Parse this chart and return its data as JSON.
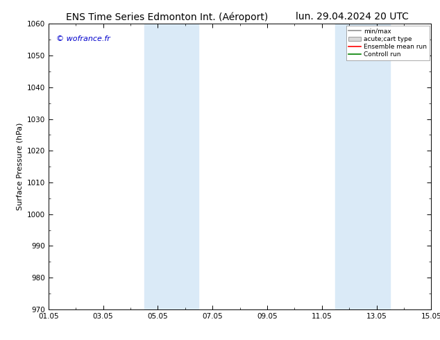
{
  "title_left": "ENS Time Series Edmonton Int. (Aéroport)",
  "title_right": "lun. 29.04.2024 20 UTC",
  "ylabel": "Surface Pressure (hPa)",
  "ylim": [
    970,
    1060
  ],
  "yticks": [
    970,
    980,
    990,
    1000,
    1010,
    1020,
    1030,
    1040,
    1050,
    1060
  ],
  "xtick_labels": [
    "01.05",
    "03.05",
    "05.05",
    "07.05",
    "09.05",
    "11.05",
    "13.05",
    "15.05"
  ],
  "xtick_positions_days": [
    0,
    2,
    4,
    6,
    8,
    10,
    12,
    14
  ],
  "xlim": [
    0,
    14
  ],
  "shaded_bands": [
    {
      "x_start_days": 3.5,
      "x_end_days": 5.5
    },
    {
      "x_start_days": 10.5,
      "x_end_days": 12.5
    }
  ],
  "shade_color": "#daeaf7",
  "watermark": "© wofrance.fr",
  "watermark_color": "#0000cc",
  "background_color": "#ffffff",
  "legend_entries": [
    {
      "label": "min/max",
      "color": "#909090",
      "style": "line"
    },
    {
      "label": "acute;cart type",
      "color": "#c0c0c0",
      "style": "box"
    },
    {
      "label": "Ensemble mean run",
      "color": "#ff0000",
      "style": "line"
    },
    {
      "label": "Controll run",
      "color": "#008000",
      "style": "line"
    }
  ],
  "title_fontsize": 10,
  "tick_fontsize": 7.5,
  "ylabel_fontsize": 8,
  "legend_fontsize": 6.5,
  "watermark_fontsize": 8
}
